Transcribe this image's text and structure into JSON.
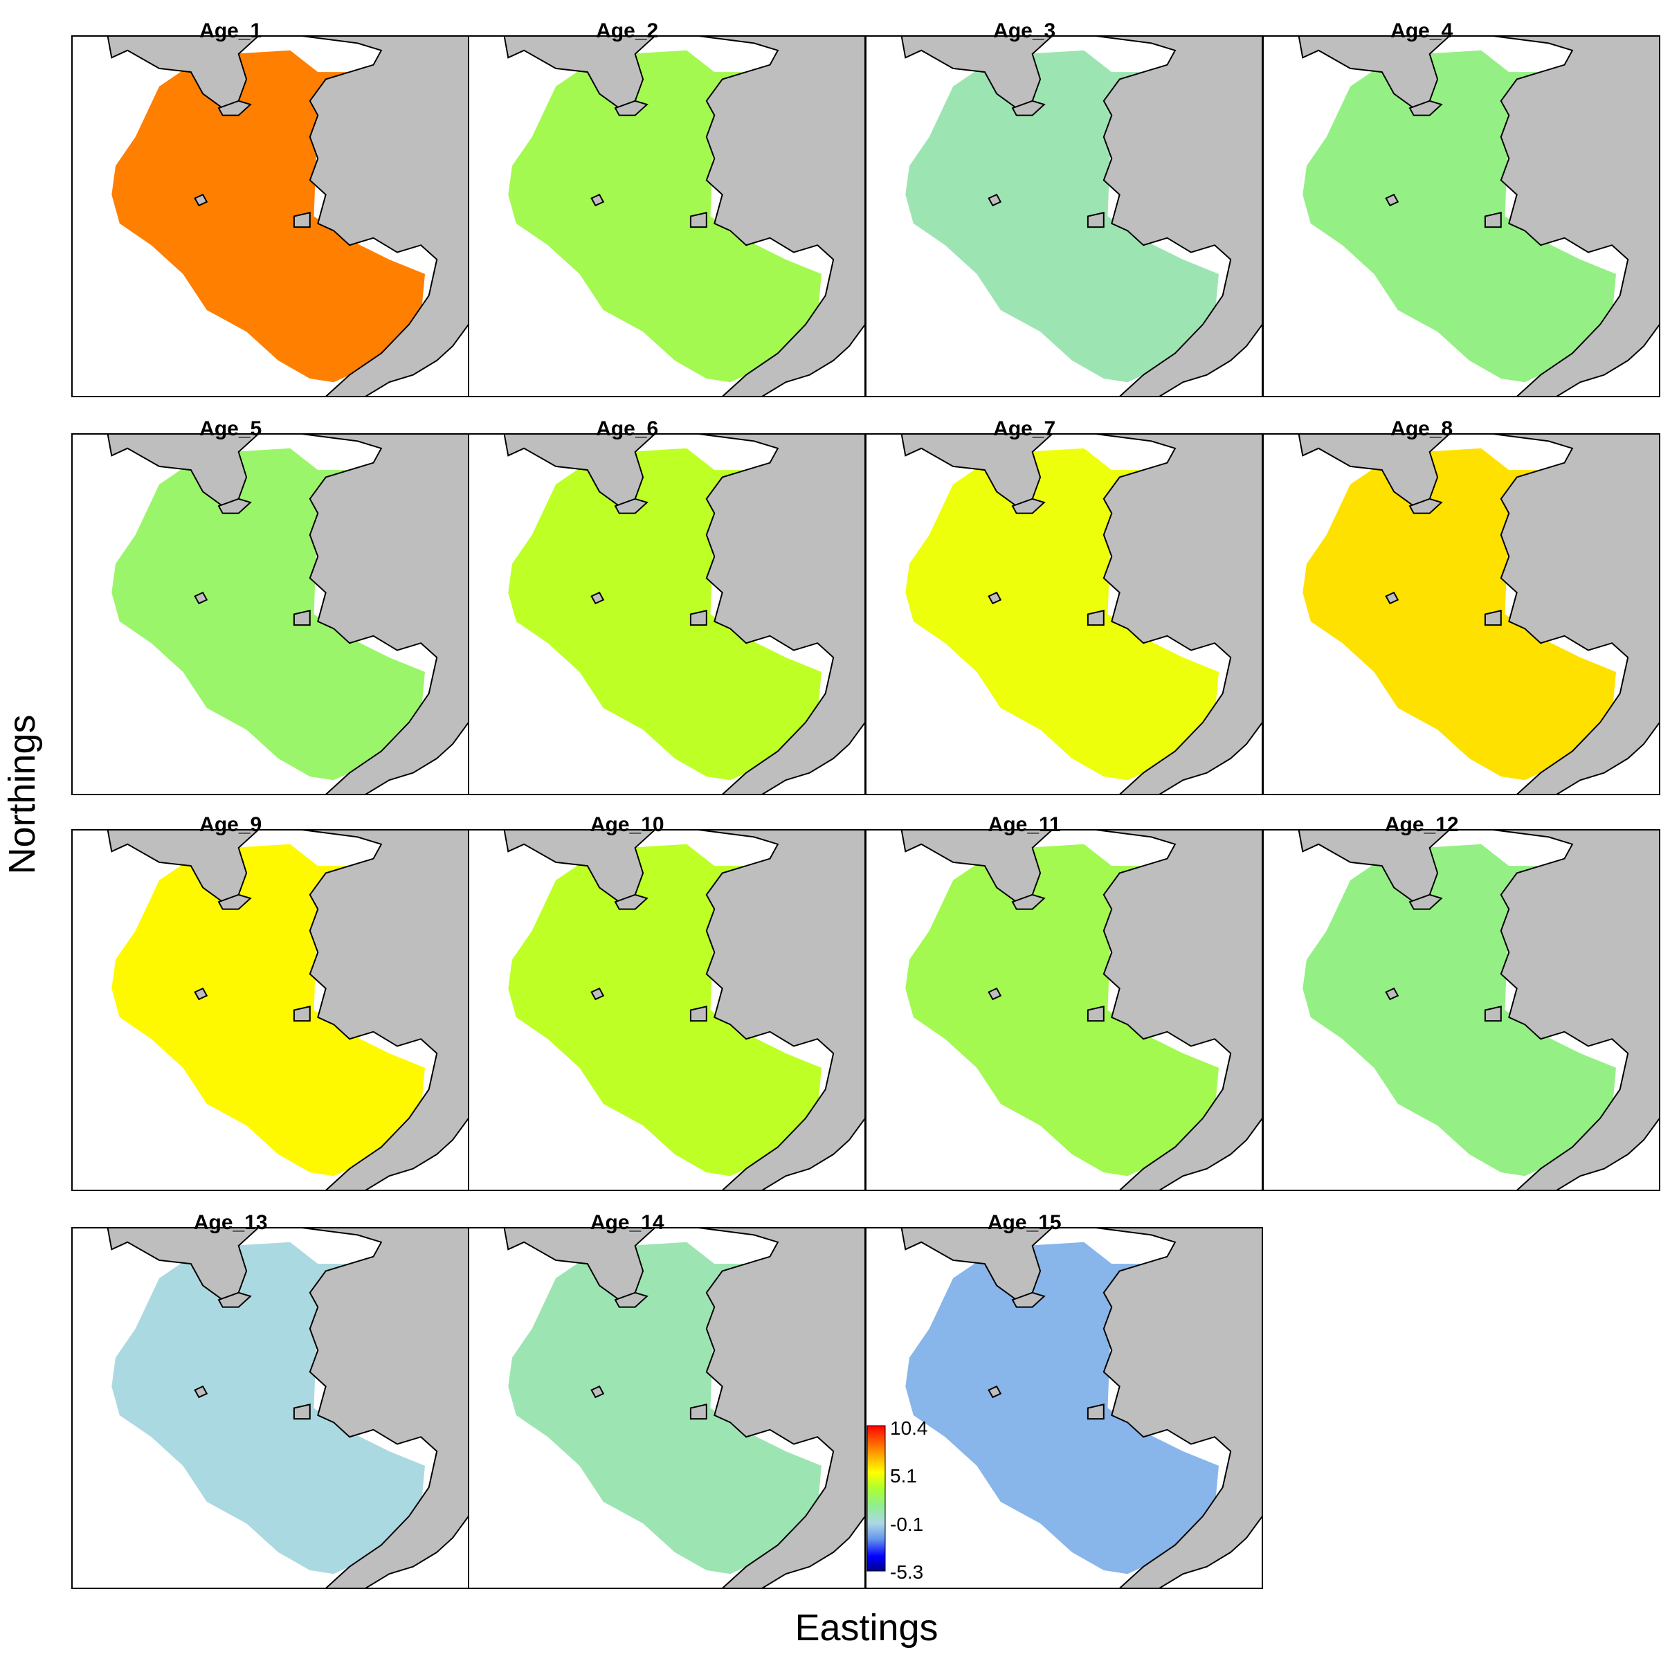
{
  "figure": {
    "xlabel": "Eastings",
    "ylabel": "Northings",
    "colors": {
      "land": "#bebebe",
      "water": "#ffffff",
      "outline": "#000000"
    }
  },
  "legend": {
    "ticks": [
      "10.4",
      "5.1",
      "-0.1",
      "-5.3"
    ],
    "range": [
      -5.3,
      10.4
    ],
    "palette": [
      "#00008b",
      "#0000ff",
      "#6495ed",
      "#add8e6",
      "#90ee90",
      "#adff2f",
      "#ffff00",
      "#ffa500",
      "#ff4500",
      "#ff0000"
    ]
  },
  "panels": [
    {
      "title": "Age_1",
      "level": 8.0,
      "overall_color": "orange-red"
    },
    {
      "title": "Age_2",
      "level": 3.0,
      "overall_color": "green-yellow-orange"
    },
    {
      "title": "Age_3",
      "level": 1.0,
      "overall_color": "blue-north orange-south"
    },
    {
      "title": "Age_4",
      "level": 2.0,
      "overall_color": "blue-north orange-south"
    },
    {
      "title": "Age_5",
      "level": 2.5,
      "overall_color": "blue-north orange-south"
    },
    {
      "title": "Age_6",
      "level": 4.0,
      "overall_color": "yellow-orange"
    },
    {
      "title": "Age_7",
      "level": 5.0,
      "overall_color": "yellow-orange"
    },
    {
      "title": "Age_8",
      "level": 6.0,
      "overall_color": "orange"
    },
    {
      "title": "Age_9",
      "level": 5.5,
      "overall_color": "yellow-orange"
    },
    {
      "title": "Age_10",
      "level": 4.0,
      "overall_color": "yellow"
    },
    {
      "title": "Age_11",
      "level": 3.0,
      "overall_color": "yellow-green"
    },
    {
      "title": "Age_12",
      "level": 2.0,
      "overall_color": "light green"
    },
    {
      "title": "Age_13",
      "level": 0.0,
      "overall_color": "light blue"
    },
    {
      "title": "Age_14",
      "level": 1.0,
      "overall_color": "light green"
    },
    {
      "title": "Age_15",
      "level": -1.0,
      "overall_color": "light blue"
    }
  ]
}
